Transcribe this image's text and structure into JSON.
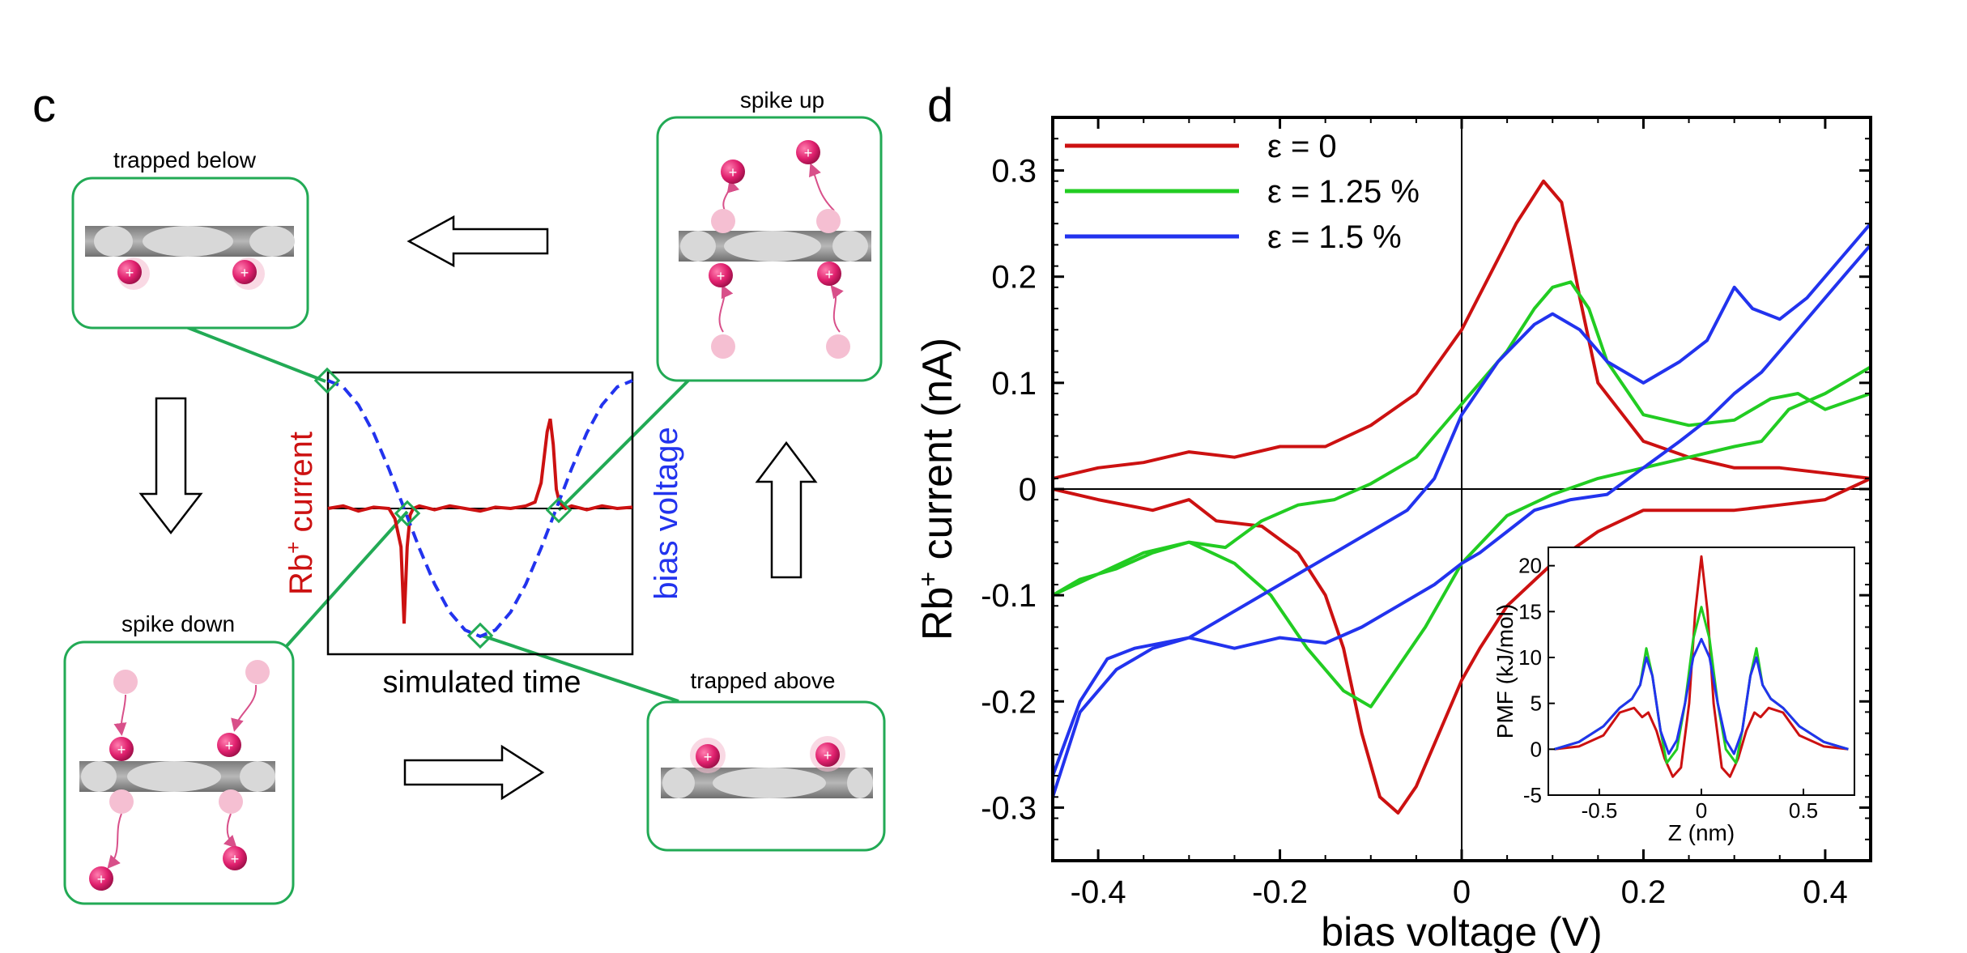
{
  "panels": {
    "c": {
      "letter": "c",
      "states": {
        "trapped_below": "trapped below",
        "spike_up": "spike up",
        "spike_down": "spike down",
        "trapped_above": "trapped above"
      },
      "ion_symbol": "+",
      "center_plot": {
        "xlabel": "simulated time",
        "left_label_main": "Rb",
        "left_label_sup": "+",
        "left_label_tail": " current",
        "right_label": "bias voltage"
      }
    },
    "d": {
      "letter": "d"
    }
  },
  "colors": {
    "red": "#cc1111",
    "green": "#22cc22",
    "blue": "#2233ee",
    "frame_green": "#22aa55",
    "ion": "#e0206e",
    "ion_faded": "#f5bfd2",
    "membrane": "#a8a8a8",
    "pore": "#d8d8d8"
  },
  "chart_data": [
    {
      "id": "main",
      "type": "line",
      "xlabel": "bias voltage (V)",
      "ylabel_main": "Rb",
      "ylabel_sup": "+",
      "ylabel_tail": " current (nA)",
      "xlim": [
        -0.45,
        0.45
      ],
      "ylim": [
        -0.35,
        0.35
      ],
      "xticks": [
        -0.4,
        -0.2,
        0,
        0.2,
        0.4
      ],
      "xtick_labels": [
        "-0.4",
        "-0.2",
        "0",
        "0.2",
        "0.4"
      ],
      "yticks": [
        -0.3,
        -0.2,
        -0.1,
        0,
        0.1,
        0.2,
        0.3
      ],
      "ytick_labels": [
        "-0.3",
        "-0.2",
        "-0.1",
        "0",
        "0.1",
        "0.2",
        "0.3"
      ],
      "legend_position": "top-left",
      "series": [
        {
          "name": "ε = 0",
          "color": "#cc1111",
          "x": [
            -0.45,
            -0.4,
            -0.35,
            -0.3,
            -0.25,
            -0.2,
            -0.15,
            -0.1,
            -0.05,
            0,
            0.03,
            0.06,
            0.09,
            0.11,
            0.13,
            0.15,
            0.2,
            0.25,
            0.3,
            0.35,
            0.4,
            0.45,
            0.4,
            0.35,
            0.3,
            0.25,
            0.2,
            0.15,
            0.1,
            0.05,
            0.02,
            0,
            -0.02,
            -0.05,
            -0.07,
            -0.09,
            -0.11,
            -0.13,
            -0.15,
            -0.18,
            -0.22,
            -0.27,
            -0.3,
            -0.34,
            -0.4,
            -0.45
          ],
          "y": [
            0.01,
            0.02,
            0.025,
            0.035,
            0.03,
            0.04,
            0.04,
            0.06,
            0.09,
            0.15,
            0.2,
            0.25,
            0.29,
            0.27,
            0.18,
            0.1,
            0.045,
            0.03,
            0.02,
            0.02,
            0.015,
            0.01,
            -0.01,
            -0.015,
            -0.02,
            -0.02,
            -0.02,
            -0.04,
            -0.07,
            -0.11,
            -0.15,
            -0.18,
            -0.22,
            -0.28,
            -0.305,
            -0.29,
            -0.23,
            -0.15,
            -0.1,
            -0.06,
            -0.035,
            -0.03,
            -0.01,
            -0.02,
            -0.01,
            0
          ]
        },
        {
          "name": "ε = 1.25 %",
          "color": "#22cc22",
          "x": [
            -0.45,
            -0.42,
            -0.38,
            -0.34,
            -0.3,
            -0.26,
            -0.22,
            -0.18,
            -0.14,
            -0.1,
            -0.05,
            0,
            0.05,
            0.08,
            0.1,
            0.12,
            0.14,
            0.16,
            0.2,
            0.25,
            0.3,
            0.34,
            0.37,
            0.4,
            0.45,
            0.45,
            0.4,
            0.36,
            0.33,
            0.3,
            0.25,
            0.2,
            0.15,
            0.1,
            0.05,
            0,
            -0.04,
            -0.08,
            -0.1,
            -0.13,
            -0.17,
            -0.21,
            -0.25,
            -0.3,
            -0.35,
            -0.4,
            -0.45
          ],
          "y": [
            -0.1,
            -0.085,
            -0.075,
            -0.06,
            -0.05,
            -0.055,
            -0.03,
            -0.015,
            -0.01,
            0.005,
            0.03,
            0.08,
            0.13,
            0.17,
            0.19,
            0.195,
            0.17,
            0.12,
            0.07,
            0.06,
            0.065,
            0.085,
            0.09,
            0.075,
            0.09,
            0.115,
            0.09,
            0.075,
            0.045,
            0.04,
            0.03,
            0.02,
            0.01,
            -0.005,
            -0.025,
            -0.07,
            -0.13,
            -0.18,
            -0.205,
            -0.19,
            -0.15,
            -0.1,
            -0.07,
            -0.05,
            -0.06,
            -0.08,
            -0.1
          ]
        },
        {
          "name": "ε = 1.5 %",
          "color": "#2233ee",
          "x": [
            -0.45,
            -0.42,
            -0.39,
            -0.36,
            -0.33,
            -0.3,
            -0.26,
            -0.22,
            -0.18,
            -0.14,
            -0.1,
            -0.06,
            -0.03,
            0,
            0.04,
            0.08,
            0.1,
            0.13,
            0.16,
            0.2,
            0.24,
            0.27,
            0.3,
            0.32,
            0.35,
            0.38,
            0.42,
            0.45,
            0.45,
            0.42,
            0.38,
            0.35,
            0.33,
            0.3,
            0.27,
            0.24,
            0.2,
            0.16,
            0.12,
            0.08,
            0.05,
            0.02,
            0,
            -0.03,
            -0.07,
            -0.11,
            -0.15,
            -0.2,
            -0.25,
            -0.3,
            -0.34,
            -0.38,
            -0.42,
            -0.45
          ],
          "y": [
            -0.27,
            -0.2,
            -0.16,
            -0.15,
            -0.145,
            -0.14,
            -0.12,
            -0.1,
            -0.08,
            -0.06,
            -0.04,
            -0.02,
            0.01,
            0.07,
            0.12,
            0.155,
            0.165,
            0.15,
            0.12,
            0.1,
            0.12,
            0.14,
            0.19,
            0.17,
            0.16,
            0.18,
            0.22,
            0.25,
            0.23,
            0.2,
            0.16,
            0.13,
            0.11,
            0.09,
            0.065,
            0.045,
            0.02,
            -0.005,
            -0.01,
            -0.02,
            -0.04,
            -0.06,
            -0.07,
            -0.09,
            -0.11,
            -0.13,
            -0.145,
            -0.14,
            -0.15,
            -0.14,
            -0.15,
            -0.17,
            -0.21,
            -0.29
          ]
        }
      ]
    },
    {
      "id": "inset",
      "type": "line",
      "xlabel": "Z (nm)",
      "ylabel": "PMF (kJ/mol)",
      "xlim": [
        -0.75,
        0.75
      ],
      "ylim": [
        -5,
        22
      ],
      "xticks": [
        -0.5,
        0,
        0.5
      ],
      "xtick_labels": [
        "-0.5",
        "0",
        "0.5"
      ],
      "yticks": [
        -5,
        0,
        5,
        10,
        15,
        20
      ],
      "ytick_labels": [
        "-5",
        "0",
        "5",
        "10",
        "15",
        "20"
      ],
      "series": [
        {
          "name": "ε = 0",
          "color": "#cc1111",
          "x": [
            -0.72,
            -0.6,
            -0.48,
            -0.4,
            -0.33,
            -0.29,
            -0.26,
            -0.22,
            -0.18,
            -0.14,
            -0.1,
            -0.06,
            -0.03,
            0,
            0.03,
            0.06,
            0.1,
            0.14,
            0.18,
            0.22,
            0.26,
            0.29,
            0.33,
            0.4,
            0.48,
            0.6,
            0.72
          ],
          "y": [
            0,
            0.3,
            1.5,
            4,
            4.5,
            3.5,
            4,
            2,
            -1,
            -3,
            -2,
            5,
            15,
            21,
            15,
            5,
            -2,
            -3,
            -1,
            2,
            4,
            3.5,
            4.5,
            4,
            1.5,
            0.3,
            0
          ]
        },
        {
          "name": "ε = 1.25 %",
          "color": "#22cc22",
          "x": [
            -0.72,
            -0.6,
            -0.48,
            -0.4,
            -0.34,
            -0.3,
            -0.27,
            -0.24,
            -0.2,
            -0.17,
            -0.12,
            -0.08,
            -0.04,
            0,
            0.04,
            0.08,
            0.12,
            0.17,
            0.2,
            0.24,
            0.27,
            0.3,
            0.34,
            0.4,
            0.48,
            0.6,
            0.72
          ],
          "y": [
            0,
            0.8,
            2.5,
            4.5,
            5.5,
            7,
            11,
            8,
            2,
            -1.5,
            0,
            5,
            12,
            15.5,
            12,
            5,
            0,
            -1.5,
            2,
            8,
            11,
            7,
            5.5,
            4.5,
            2.5,
            0.8,
            0
          ]
        },
        {
          "name": "ε = 1.5 %",
          "color": "#2233ee",
          "x": [
            -0.72,
            -0.6,
            -0.48,
            -0.4,
            -0.34,
            -0.3,
            -0.27,
            -0.24,
            -0.2,
            -0.16,
            -0.12,
            -0.08,
            -0.04,
            0,
            0.04,
            0.08,
            0.12,
            0.16,
            0.2,
            0.24,
            0.27,
            0.3,
            0.34,
            0.4,
            0.48,
            0.6,
            0.72
          ],
          "y": [
            0,
            0.8,
            2.5,
            4.5,
            5.5,
            7,
            10,
            8,
            2,
            -0.5,
            1,
            5,
            10,
            12,
            10,
            5,
            1,
            -0.5,
            2,
            8,
            10,
            7,
            5.5,
            4.5,
            2.5,
            0.8,
            0
          ]
        }
      ]
    },
    {
      "id": "schematic",
      "type": "line",
      "xlabel": "simulated time",
      "ylabel": "Rb+ current / bias voltage",
      "xlim": [
        0,
        100
      ],
      "ylim": [
        -1,
        1
      ],
      "series": [
        {
          "name": "Rb+ current",
          "color": "#cc1111",
          "x": [
            0,
            5,
            10,
            15,
            20,
            22,
            24,
            25,
            26,
            27,
            28,
            30,
            35,
            40,
            45,
            50,
            55,
            60,
            65,
            68,
            70,
            72,
            73,
            74,
            75,
            76,
            78,
            80,
            85,
            90,
            95,
            100
          ],
          "y": [
            0,
            0.02,
            -0.02,
            0.01,
            0,
            -0.08,
            -0.3,
            -0.9,
            -0.3,
            -0.05,
            0,
            0.02,
            -0.01,
            0.02,
            0,
            -0.02,
            0.01,
            0,
            0.02,
            0.05,
            0.2,
            0.6,
            0.7,
            0.5,
            0.15,
            0.05,
            0,
            0.02,
            -0.01,
            0.02,
            0,
            0.01
          ]
        },
        {
          "name": "bias voltage",
          "color": "#2233ee",
          "x": [
            0,
            5,
            10,
            15,
            20,
            25,
            30,
            35,
            40,
            45,
            50,
            55,
            60,
            65,
            70,
            75,
            80,
            85,
            90,
            95,
            100
          ],
          "y": [
            1,
            0.95,
            0.81,
            0.59,
            0.31,
            0,
            -0.31,
            -0.59,
            -0.81,
            -0.95,
            -1,
            -0.95,
            -0.81,
            -0.59,
            -0.31,
            0,
            0.31,
            0.59,
            0.81,
            0.95,
            1
          ]
        }
      ]
    }
  ]
}
